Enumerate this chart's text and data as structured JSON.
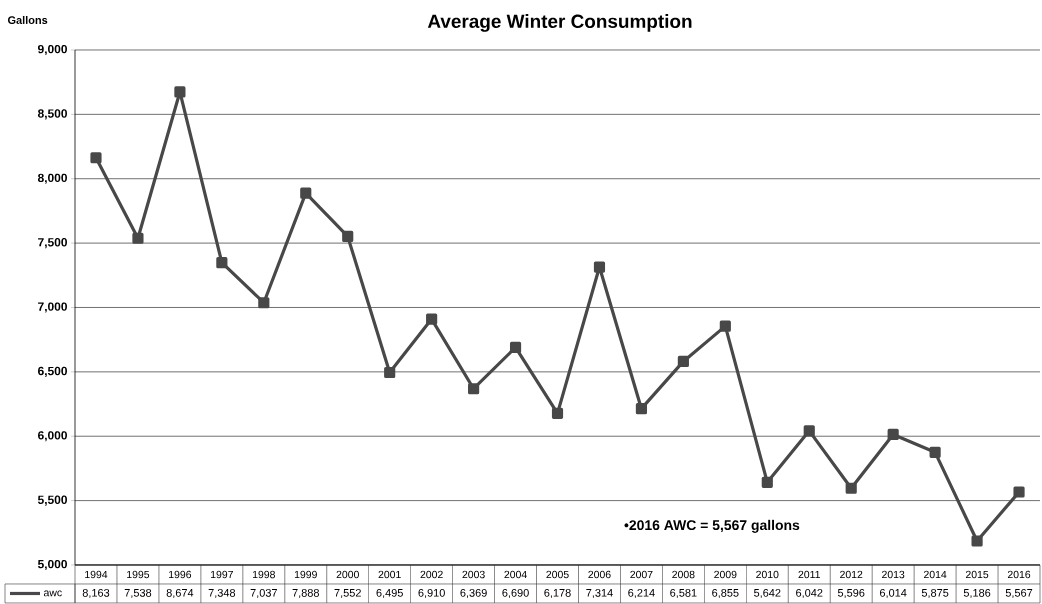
{
  "chart_data": {
    "type": "line",
    "title": "Average Winter Consumption",
    "ylabel": "Gallons",
    "categories": [
      "1994",
      "1995",
      "1996",
      "1997",
      "1998",
      "1999",
      "2000",
      "2001",
      "2002",
      "2003",
      "2004",
      "2005",
      "2006",
      "2007",
      "2008",
      "2009",
      "2010",
      "2011",
      "2012",
      "2013",
      "2014",
      "2015",
      "2016"
    ],
    "series": [
      {
        "name": "awc",
        "color": "#484848",
        "values": [
          8163,
          7538,
          8674,
          7348,
          7037,
          7888,
          7552,
          6495,
          6910,
          6369,
          6690,
          6178,
          7314,
          6214,
          6581,
          6855,
          5642,
          6042,
          5596,
          6014,
          5875,
          5186,
          5567
        ],
        "value_labels": [
          "8,163",
          "7,538",
          "8,674",
          "7,348",
          "7,037",
          "7,888",
          "7,552",
          "6,495",
          "6,910",
          "6,369",
          "6,690",
          "6,178",
          "7,314",
          "6,214",
          "6,581",
          "6,855",
          "5,642",
          "6,042",
          "5,596",
          "6,014",
          "5,875",
          "5,186",
          "5,567"
        ]
      }
    ],
    "ylim": [
      5000,
      9000
    ],
    "yticks": [
      {
        "value": 5000,
        "label": "5,000"
      },
      {
        "value": 5500,
        "label": "5,500"
      },
      {
        "value": 6000,
        "label": "6,000"
      },
      {
        "value": 6500,
        "label": "6,500"
      },
      {
        "value": 7000,
        "label": "7,000"
      },
      {
        "value": 7500,
        "label": "7,500"
      },
      {
        "value": 8000,
        "label": "8,000"
      },
      {
        "value": 8500,
        "label": "8,500"
      },
      {
        "value": 9000,
        "label": "9,000"
      }
    ],
    "grid": "y",
    "marker": "square",
    "line_style": "solid",
    "annotations": [
      "•2016 AWC = 5,567 gallons"
    ]
  }
}
